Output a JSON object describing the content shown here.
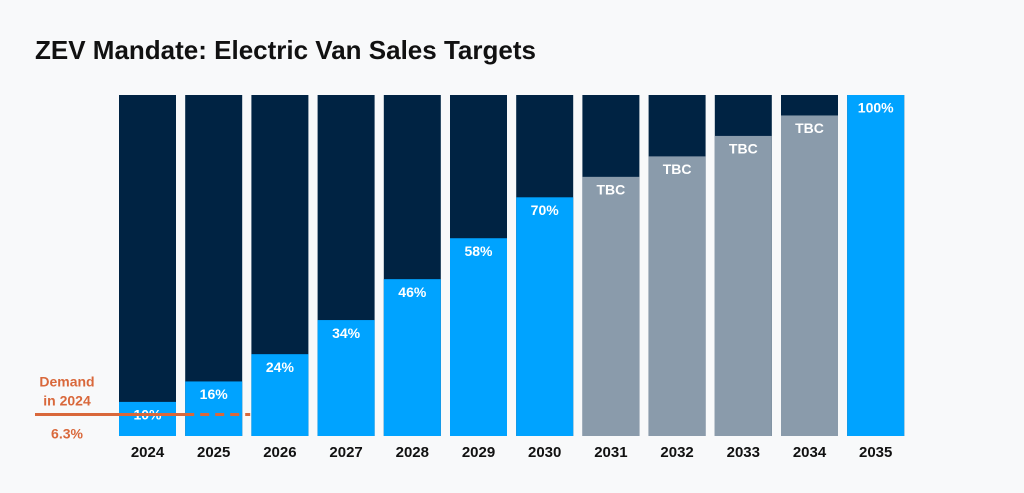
{
  "chart_data": {
    "type": "bar",
    "title": "ZEV Mandate: Electric Van Sales Targets",
    "categories": [
      "2024",
      "2025",
      "2026",
      "2027",
      "2028",
      "2029",
      "2030",
      "2031",
      "2032",
      "2033",
      "2034",
      "2035"
    ],
    "values": [
      10,
      16,
      24,
      34,
      46,
      58,
      70,
      76,
      82,
      88,
      94,
      100
    ],
    "value_labels": [
      "10%",
      "16%",
      "24%",
      "34%",
      "46%",
      "58%",
      "70%",
      "TBC",
      "TBC",
      "TBC",
      "TBC",
      "100%"
    ],
    "colors": [
      "#00a3ff",
      "#00a3ff",
      "#00a3ff",
      "#00a3ff",
      "#00a3ff",
      "#00a3ff",
      "#00a3ff",
      "#8a9bab",
      "#8a9bab",
      "#8a9bab",
      "#8a9bab",
      "#00a3ff"
    ],
    "track_color": "#002343",
    "ylim": [
      0,
      100
    ],
    "annotation": {
      "lines": [
        "Demand",
        "in 2024"
      ],
      "value": 6.3,
      "label": "6.3%",
      "color": "#d9683b"
    }
  }
}
